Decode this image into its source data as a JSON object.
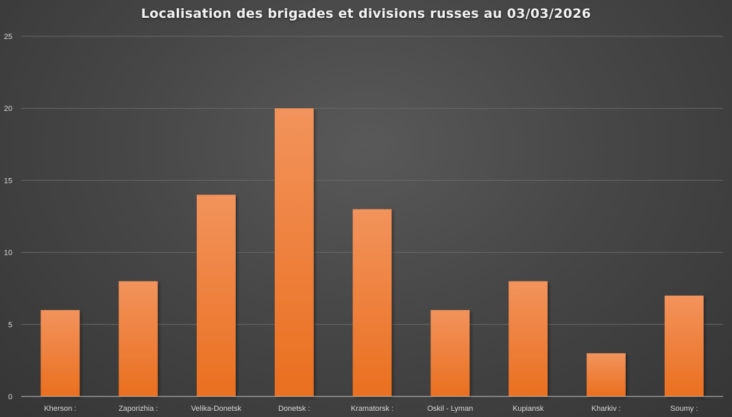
{
  "chart_data": {
    "type": "bar",
    "title": "Localisation des brigades et divisions russes au 03/03/2026",
    "categories": [
      "Kherson :",
      "Zaporizhia :",
      "Velika-Donetsk",
      "Donetsk :",
      "Kramatorsk :",
      "Oskil - Lyman",
      "Kupiansk",
      "Kharkiv :",
      "Soumy :"
    ],
    "values": [
      6,
      8,
      14,
      20,
      13,
      6,
      8,
      3,
      7
    ],
    "yticks": [
      "0",
      "5",
      "10",
      "15",
      "20",
      "25"
    ],
    "ylim": [
      0,
      25
    ],
    "xlabel": "",
    "ylabel": "",
    "grid": true,
    "legend": "none",
    "colors": {
      "bar_top": "#f2935c",
      "bar_bottom": "#ea6f1f",
      "grid": "#6a6a6a",
      "axis": "#bfbfbf",
      "text": "#d9d9d9"
    }
  }
}
